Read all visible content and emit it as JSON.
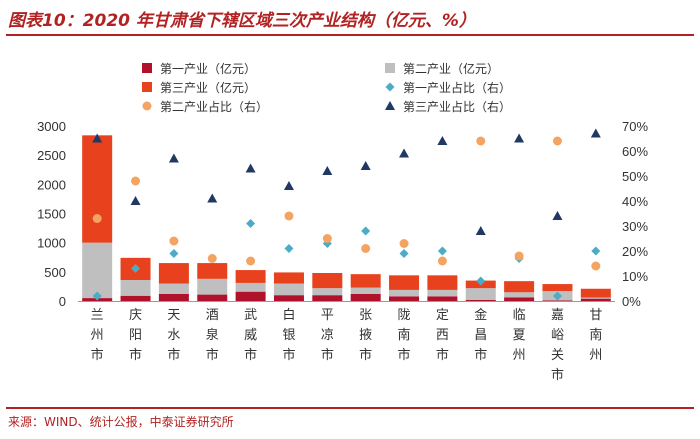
{
  "header": {
    "title": "图表10：2020 年甘肃省下辖区域三次产业结构（亿元、%）"
  },
  "footer": {
    "source": "来源：WIND、统计公报，中泰证券研究所"
  },
  "chart_data": {
    "type": "bar",
    "stacked": true,
    "categories": [
      "兰州市",
      "庆阳市",
      "天水市",
      "酒泉市",
      "武威市",
      "白银市",
      "平凉市",
      "张掖市",
      "陇南市",
      "定西市",
      "金昌市",
      "临夏州",
      "嘉峪关市",
      "甘南州"
    ],
    "series": [
      {
        "name": "第一产业（亿元）",
        "kind": "bar",
        "axis": "left",
        "color": "#b0122b",
        "values": [
          50,
          90,
          120,
          110,
          160,
          100,
          100,
          120,
          80,
          80,
          20,
          60,
          10,
          40
        ]
      },
      {
        "name": "第二产业（亿元）",
        "kind": "bar",
        "axis": "left",
        "color": "#bfbfbf",
        "values": [
          950,
          270,
          180,
          270,
          150,
          200,
          120,
          110,
          110,
          110,
          200,
          90,
          160,
          20
        ]
      },
      {
        "name": "第三产业（亿元）",
        "kind": "bar",
        "axis": "left",
        "color": "#e8411d",
        "values": [
          1840,
          380,
          350,
          270,
          220,
          190,
          260,
          230,
          250,
          250,
          130,
          190,
          120,
          150
        ]
      },
      {
        "name": "第一产业占比（右）",
        "kind": "scatter",
        "marker": "diamond",
        "axis": "right",
        "color": "#4bacc6",
        "values": [
          2,
          13,
          19,
          17,
          31,
          21,
          23,
          28,
          19,
          20,
          8,
          17,
          2,
          20
        ]
      },
      {
        "name": "第二产业占比（右）",
        "kind": "scatter",
        "marker": "circle",
        "axis": "right",
        "color": "#f4a460",
        "values": [
          33,
          48,
          24,
          17,
          16,
          34,
          25,
          21,
          23,
          16,
          64,
          18,
          64,
          14
        ]
      },
      {
        "name": "第三产业占比（右）",
        "kind": "scatter",
        "marker": "triangle",
        "axis": "right",
        "color": "#1f3864",
        "values": [
          65,
          40,
          57,
          41,
          53,
          46,
          52,
          54,
          59,
          64,
          28,
          65,
          34,
          67
        ]
      }
    ],
    "y_left": {
      "min": 0,
      "max": 3000,
      "ticks": [
        "0",
        "500",
        "1000",
        "1500",
        "2000",
        "2500",
        "3000"
      ]
    },
    "y_right": {
      "min": 0,
      "max": 70,
      "ticks": [
        "0%",
        "10%",
        "20%",
        "30%",
        "40%",
        "50%",
        "60%",
        "70%"
      ]
    },
    "legend_position": "top"
  }
}
